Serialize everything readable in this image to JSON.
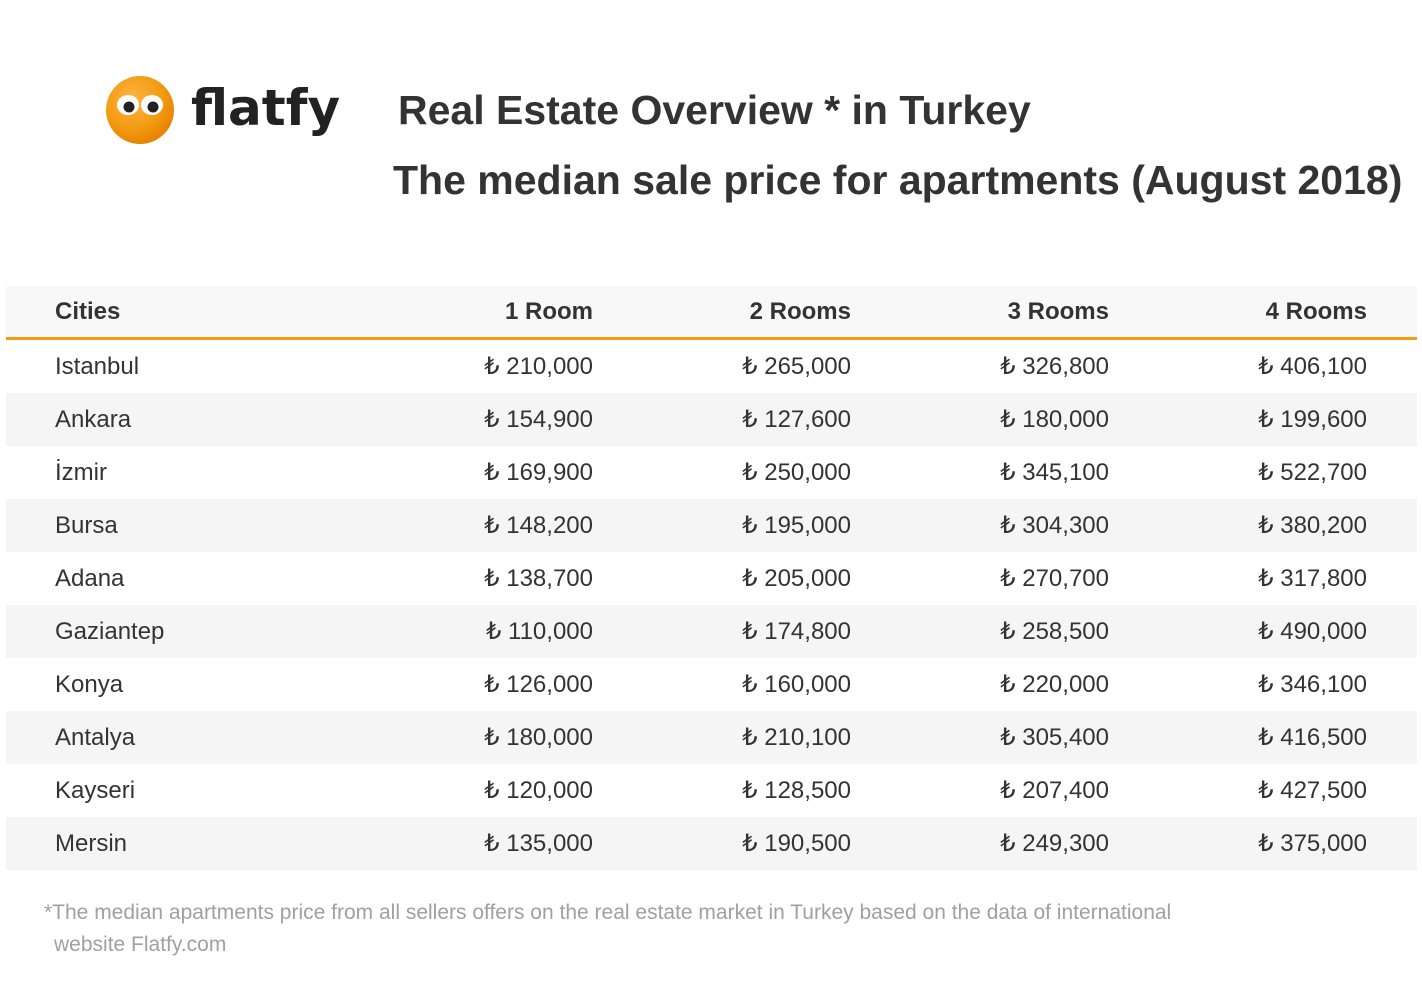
{
  "brand": {
    "name": "flatfy",
    "accent": "#f39c12"
  },
  "chart_data": {
    "type": "table",
    "title": "Real Estate Overview * in Turkey",
    "subtitle": "The median sale price for apartments (August 2018)",
    "currency_symbol": "₺",
    "columns": [
      "Cities",
      "1 Room",
      "2 Rooms",
      "3 Rooms",
      "4 Rooms"
    ],
    "rows": [
      {
        "city": "Istanbul",
        "values": [
          210000,
          265000,
          326800,
          406100
        ]
      },
      {
        "city": "Ankara",
        "values": [
          154900,
          127600,
          180000,
          199600
        ]
      },
      {
        "city": "İzmir",
        "values": [
          169900,
          250000,
          345100,
          522700
        ]
      },
      {
        "city": "Bursa",
        "values": [
          148200,
          195000,
          304300,
          380200
        ]
      },
      {
        "city": "Adana",
        "values": [
          138700,
          205000,
          270700,
          317800
        ]
      },
      {
        "city": "Gaziantep",
        "values": [
          110000,
          174800,
          258500,
          490000
        ]
      },
      {
        "city": "Konya",
        "values": [
          126000,
          160000,
          220000,
          346100
        ]
      },
      {
        "city": "Antalya",
        "values": [
          180000,
          210100,
          305400,
          416500
        ]
      },
      {
        "city": "Kayseri",
        "values": [
          120000,
          128500,
          207400,
          427500
        ]
      },
      {
        "city": "Mersin",
        "values": [
          135000,
          190500,
          249300,
          375000
        ]
      }
    ],
    "footnote_line1": "*The median apartments price from all sellers offers on the real estate market in Turkey based on the data of international",
    "footnote_line2": "website Flatfy.com"
  }
}
